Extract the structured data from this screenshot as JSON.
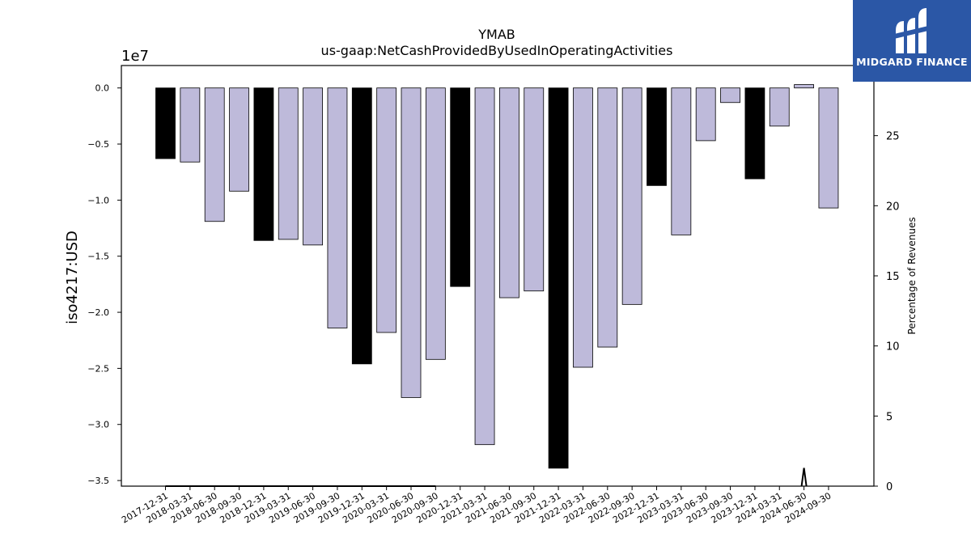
{
  "chart_data": {
    "type": "bar",
    "title": "YMAB",
    "subtitle": "us-gaap:NetCashProvidedByUsedInOperatingActivities",
    "ylabel": "iso4217:USD",
    "y_offset_label": "1e7",
    "y2label": "Percentage of Revenues",
    "ylim": [
      -35500000.0,
      2000000.0
    ],
    "y2lim": [
      0,
      30
    ],
    "yticks": [
      "0.0",
      "−0.5",
      "−1.0",
      "−1.5",
      "−2.0",
      "−2.5",
      "−3.0",
      "−3.5"
    ],
    "y2ticks": [
      "0",
      "5",
      "10",
      "15",
      "20",
      "25",
      "30"
    ],
    "grid": false,
    "categories": [
      "2017-12-31",
      "2018-03-31",
      "2018-06-30",
      "2018-09-30",
      "2018-12-31",
      "2019-03-31",
      "2019-06-30",
      "2019-09-30",
      "2019-12-31",
      "2020-03-31",
      "2020-06-30",
      "2020-09-30",
      "2020-12-31",
      "2021-03-31",
      "2021-06-30",
      "2021-09-30",
      "2021-12-31",
      "2022-03-31",
      "2022-06-30",
      "2022-09-30",
      "2022-12-31",
      "2023-03-31",
      "2023-06-30",
      "2023-09-30",
      "2023-12-31",
      "2024-03-31",
      "2024-06-30",
      "2024-09-30"
    ],
    "values": [
      -6300000,
      -6600000,
      -11900000,
      -9200000,
      -13600000,
      -13500000,
      -14000000,
      -21400000,
      -24600000,
      -21800000,
      -27600000,
      -24200000,
      -17700000,
      -31800000,
      -18700000,
      -18100000,
      -33900000,
      -24900000,
      -23100000,
      -19300000,
      -8700000,
      -13100000,
      -4700000,
      -1300000,
      -8100000,
      -3400000,
      300000,
      -10700000
    ],
    "bar_colors": [
      "#000000",
      "#bebada",
      "#bebada",
      "#bebada",
      "#000000",
      "#bebada",
      "#bebada",
      "#bebada",
      "#000000",
      "#bebada",
      "#bebada",
      "#bebada",
      "#000000",
      "#bebada",
      "#bebada",
      "#bebada",
      "#000000",
      "#bebada",
      "#bebada",
      "#bebada",
      "#000000",
      "#bebada",
      "#bebada",
      "#bebada",
      "#000000",
      "#bebada",
      "#bebada",
      "#bebada"
    ],
    "percentage_series": {
      "values": [
        0,
        0,
        0,
        0,
        0,
        0,
        0,
        0,
        0,
        0,
        0,
        0,
        null,
        null,
        null,
        null,
        null,
        null,
        null,
        null,
        null,
        null,
        null,
        null,
        null,
        null,
        1.3,
        null
      ],
      "color": "#000000"
    }
  },
  "logo": {
    "text": "MIDGARD FINANCE",
    "bg_color": "#2b57a6"
  }
}
